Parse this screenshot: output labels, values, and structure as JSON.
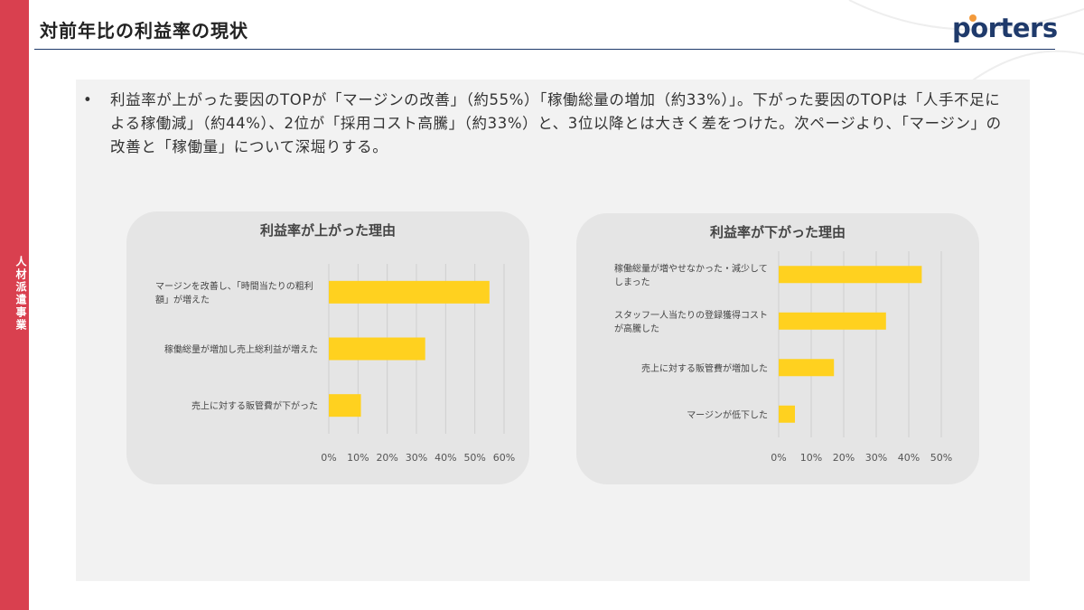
{
  "side_label": "人材派遣事業",
  "page_title": "対前年比の利益率の現状",
  "logo": {
    "text": "porters"
  },
  "bullet": "利益率が上がった要因のTOPが「マージンの改善」（約55%）「稼働総量の増加（約33%）」。下がった要因のTOPは「人手不足による稼働減」（約44%）、2位が「採用コスト高騰」（約33%）と、3位以降とは大きく差をつけた。次ページより、「マージン」の改善と「稼働量」について深堀りする。",
  "colors": {
    "bar": "#ffd11f",
    "accent": "#d9404f",
    "brand": "#1f3a6b",
    "grid": "#cfcfcf"
  },
  "chart_data": [
    {
      "type": "bar",
      "orientation": "horizontal",
      "title": "利益率が上がった理由",
      "categories": [
        [
          "マージンを改善し、「時間当たりの粗利",
          "額」が増えた"
        ],
        [
          "稼働総量が増加し売上総利益が増えた"
        ],
        [
          "売上に対する販管費が下がった"
        ]
      ],
      "values": [
        55,
        33,
        11
      ],
      "xlim": [
        0,
        60
      ],
      "xticks": [
        "0%",
        "10%",
        "20%",
        "30%",
        "40%",
        "50%",
        "60%"
      ],
      "grid": true
    },
    {
      "type": "bar",
      "orientation": "horizontal",
      "title": "利益率が下がった理由",
      "categories": [
        [
          "稼働総量が増やせなかった・減少して",
          "しまった"
        ],
        [
          "スタッフ一人当たりの登録獲得コスト",
          "が高騰した"
        ],
        [
          "売上に対する販管費が増加した"
        ],
        [
          "マージンが低下した"
        ]
      ],
      "values": [
        44,
        33,
        17,
        5
      ],
      "xlim": [
        0,
        50
      ],
      "xticks": [
        "0%",
        "10%",
        "20%",
        "30%",
        "40%",
        "50%"
      ],
      "grid": true
    }
  ]
}
